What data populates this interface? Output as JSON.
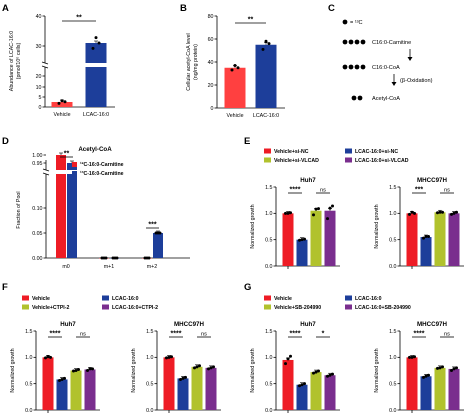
{
  "colors": {
    "red": "#ee1c25",
    "blue": "#1d3e9a",
    "green": "#b1c22d",
    "purple": "#7a2e8e",
    "redA": "#ff4040"
  },
  "panels": {
    "A": "A",
    "B": "B",
    "C": "C",
    "D": "D",
    "E": "E",
    "F": "F",
    "G": "G"
  },
  "schematic": {
    "label": "= ¹³C",
    "s1": "C16:0-Carnitine",
    "s2": "C16:0-CoA",
    "s3": "(β-Oxidation)",
    "s4": "Acetyl-CoA"
  },
  "chart_data": [
    {
      "id": "A",
      "type": "bar",
      "categories": [
        "Vehicle",
        "LCAC-16:0"
      ],
      "values": [
        2.5,
        31
      ],
      "points": [
        [
          1.8,
          3.1,
          2.6
        ],
        [
          29.2,
          32.8,
          31.0
        ]
      ],
      "ylabel": "Abundance of LCAC-16:0 (pmol/10^6 cells)",
      "yticks": [
        "0",
        "5",
        "10",
        "20",
        "30",
        "40"
      ],
      "sig": [
        {
          "label": "**"
        }
      ]
    },
    {
      "id": "B",
      "type": "bar",
      "categories": [
        "Vehicle",
        "LCAC-16:0"
      ],
      "values": [
        35,
        55
      ],
      "points": [
        [
          33,
          37,
          35
        ],
        [
          51,
          58,
          56
        ]
      ],
      "ylabel": "Cellular acetyl-CoA level (ng/mg protein)",
      "yticks": [
        "0",
        "20",
        "40",
        "60",
        "80"
      ],
      "ylim": [
        0,
        80
      ],
      "sig": [
        {
          "label": "**"
        }
      ]
    },
    {
      "id": "D",
      "type": "bar",
      "title": "Acetyl-CoA",
      "categories": [
        "m0",
        "m+1",
        "m+2"
      ],
      "series": [
        {
          "name": "¹²C-16:0-Carnitine",
          "values": [
            1.0,
            0.0,
            0.0
          ]
        },
        {
          "name": "¹³C-16:0-Carnitine",
          "values": [
            0.95,
            0.0,
            0.05
          ]
        }
      ],
      "ylabel": "Fraction of Pool",
      "yticks": [
        "0.00",
        "0.05",
        "0.10",
        "0.95",
        "1.00"
      ],
      "sig": [
        {
          "label": "**"
        },
        {
          "label": "***"
        }
      ]
    },
    {
      "id": "E",
      "type": "bar",
      "legend": [
        "Vehicle+si-NC",
        "LCAC-16:0+si-NC",
        "Vehicle+si-VLCAD",
        "LCAC-16:0+si-VLCAD"
      ],
      "ylabel": "Normalized growth",
      "yticks": [
        "0.0",
        "0.5",
        "1.0",
        "1.5"
      ],
      "ylim": [
        0,
        1.5
      ],
      "subplots": [
        {
          "title": "Huh7",
          "values": [
            1.0,
            0.5,
            1.05,
            1.05
          ],
          "points": [
            [
              1.0,
              1.0,
              1.01
            ],
            [
              0.49,
              0.5,
              0.51
            ],
            [
              0.97,
              1.08,
              1.09
            ],
            [
              0.9,
              1.1,
              1.14
            ]
          ],
          "sig": [
            {
              "label": "****"
            },
            {
              "label": "ns"
            }
          ]
        },
        {
          "title": "MHCC97H",
          "values": [
            1.0,
            0.55,
            1.02,
            1.0
          ],
          "points": [
            [
              0.98,
              1.02,
              1.0
            ],
            [
              0.53,
              0.56,
              0.56
            ],
            [
              1.01,
              1.02,
              1.02
            ],
            [
              0.98,
              1.0,
              1.02
            ]
          ],
          "sig": [
            {
              "label": "***"
            },
            {
              "label": "ns"
            }
          ]
        }
      ]
    },
    {
      "id": "F",
      "type": "bar",
      "legend": [
        "Vehicle",
        "LCAC-16:0",
        "Vehicle+CTPI-2",
        "LCAC-16:0+CTPI-2"
      ],
      "ylabel": "Normalized growth",
      "yticks": [
        "0.0",
        "0.5",
        "1.0",
        "1.5"
      ],
      "ylim": [
        0,
        1.5
      ],
      "subplots": [
        {
          "title": "Huh7",
          "values": [
            1.0,
            0.58,
            0.75,
            0.77
          ],
          "points": [
            [
              0.99,
              1.01,
              1.0
            ],
            [
              0.56,
              0.58,
              0.6
            ],
            [
              0.74,
              0.75,
              0.77
            ],
            [
              0.75,
              0.78,
              0.78
            ]
          ],
          "sig": [
            {
              "label": "****"
            },
            {
              "label": "ns"
            }
          ]
        },
        {
          "title": "MHCC97H",
          "values": [
            1.0,
            0.6,
            0.82,
            0.8
          ],
          "points": [
            [
              0.99,
              1.0,
              1.01
            ],
            [
              0.58,
              0.6,
              0.62
            ],
            [
              0.8,
              0.82,
              0.84
            ],
            [
              0.78,
              0.8,
              0.82
            ]
          ],
          "sig": [
            {
              "label": "****"
            },
            {
              "label": "ns"
            }
          ]
        }
      ]
    },
    {
      "id": "G",
      "type": "bar",
      "legend": [
        "Vehicle",
        "LCAC-16:0",
        "Vehicle+SB-204990",
        "LCAC-16:0+SB-204990"
      ],
      "ylabel": "Normalized growth",
      "yticks": [
        "0.0",
        "0.5",
        "1.0",
        "1.5"
      ],
      "ylim": [
        0,
        1.5
      ],
      "subplots": [
        {
          "title": "Huh7",
          "values": [
            0.95,
            0.48,
            0.72,
            0.66
          ],
          "points": [
            [
              0.88,
              0.97,
              1.02
            ],
            [
              0.46,
              0.48,
              0.5
            ],
            [
              0.7,
              0.72,
              0.74
            ],
            [
              0.64,
              0.66,
              0.68
            ]
          ],
          "sig": [
            {
              "label": "****"
            },
            {
              "label": "*"
            }
          ]
        },
        {
          "title": "MHCC97H",
          "values": [
            1.0,
            0.64,
            0.8,
            0.78
          ],
          "points": [
            [
              1.0,
              1.0,
              1.01
            ],
            [
              0.62,
              0.64,
              0.66
            ],
            [
              0.79,
              0.8,
              0.82
            ],
            [
              0.75,
              0.78,
              0.8
            ]
          ],
          "sig": [
            {
              "label": "****"
            },
            {
              "label": "ns"
            }
          ]
        }
      ]
    }
  ]
}
